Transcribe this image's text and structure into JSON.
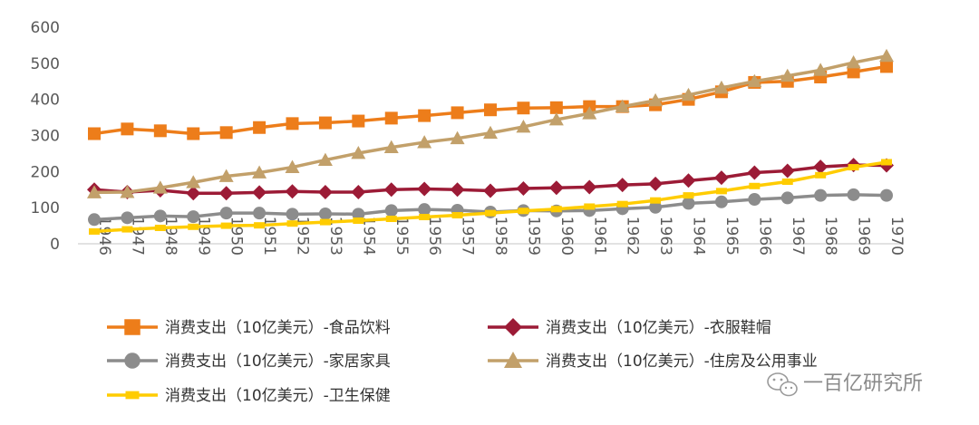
{
  "chart_data": {
    "type": "line",
    "title": "",
    "xlabel": "",
    "ylabel": "",
    "ylim": [
      0,
      600
    ],
    "yticks": [
      0,
      100,
      200,
      300,
      400,
      500,
      600
    ],
    "grid": false,
    "legend_position": "bottom",
    "categories": [
      "1946",
      "1947",
      "1948",
      "1949",
      "1950",
      "1951",
      "1952",
      "1953",
      "1954",
      "1955",
      "1956",
      "1957",
      "1958",
      "1959",
      "1960",
      "1961",
      "1962",
      "1963",
      "1964",
      "1965",
      "1966",
      "1967",
      "1968",
      "1969",
      "1970"
    ],
    "series": [
      {
        "key": "food",
        "name": "消费支出（10亿美元）-食品饮料",
        "color": "#ED7D1A",
        "marker": "square",
        "values": [
          305,
          318,
          313,
          305,
          308,
          322,
          333,
          335,
          340,
          348,
          355,
          363,
          371,
          376,
          377,
          380,
          380,
          385,
          400,
          421,
          447,
          450,
          462,
          476,
          491
        ]
      },
      {
        "key": "clothing",
        "name": "消费支出（10亿美元）-衣服鞋帽",
        "color": "#9C1B36",
        "marker": "diamond",
        "values": [
          150,
          143,
          148,
          140,
          140,
          142,
          145,
          143,
          143,
          150,
          152,
          150,
          147,
          153,
          155,
          157,
          163,
          166,
          175,
          183,
          197,
          202,
          213,
          218,
          217
        ]
      },
      {
        "key": "furniture",
        "name": "消费支出（10亿美元）-家居家具",
        "color": "#8C8C8C",
        "marker": "circle",
        "values": [
          67,
          72,
          77,
          75,
          85,
          85,
          82,
          83,
          82,
          92,
          95,
          93,
          88,
          92,
          91,
          92,
          97,
          101,
          112,
          116,
          123,
          127,
          134,
          136,
          134
        ]
      },
      {
        "key": "housing",
        "name": "消费支出（10亿美元）-住房及公用事业",
        "color": "#C2A06A",
        "marker": "triangle",
        "values": [
          142,
          143,
          155,
          170,
          187,
          197,
          212,
          232,
          251,
          267,
          281,
          292,
          307,
          324,
          344,
          361,
          380,
          397,
          412,
          432,
          450,
          465,
          481,
          502,
          520
        ]
      },
      {
        "key": "health",
        "name": "消费支出（10亿美元）-卫生保健",
        "color": "#FFCC00",
        "marker": "dash",
        "values": [
          34,
          40,
          44,
          47,
          50,
          51,
          56,
          60,
          64,
          69,
          74,
          79,
          85,
          91,
          96,
          103,
          110,
          120,
          134,
          146,
          160,
          172,
          190,
          212,
          226
        ]
      }
    ]
  },
  "watermark": {
    "text": "一百亿研究所",
    "icon": "wechat-icon"
  }
}
